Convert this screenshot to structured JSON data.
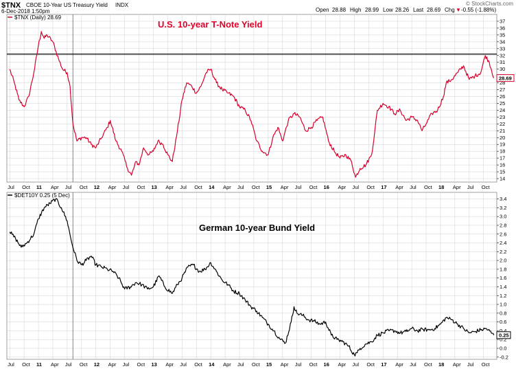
{
  "header": {
    "symbol": "$TNX",
    "description": "CBOE 10-Year US Treasury Yield",
    "exchange": "INDX",
    "date": "6-Dec-2018 1:50pm",
    "watermark": "© StockCharts.com",
    "open_label": "Open",
    "open": "28.88",
    "high_label": "High",
    "high": "28.99",
    "low_label": "Low",
    "low": "28.26",
    "last_label": "Last",
    "last": "28.69",
    "chg_label": "Chg",
    "chg": "-0.55 (-1.88%)",
    "chg_arrow": "▼"
  },
  "colors": {
    "top_line": "#d6002a",
    "bottom_line": "#000000",
    "annotation": "#e0002a",
    "grid": "#d0d0d0"
  },
  "chart_data": [
    {
      "type": "line",
      "legend": "$TNX (Daily) 28.69",
      "annotation": "U.S. 10-year T-Note Yield",
      "last_value_label": "28.69",
      "ylim": [
        13.5,
        38
      ],
      "yticks": [
        14,
        15,
        16,
        17,
        18,
        19,
        20,
        21,
        22,
        23,
        24,
        25,
        26,
        27,
        28,
        29,
        30,
        31,
        32,
        33,
        34,
        35,
        36,
        37
      ],
      "y_tick_labels": [
        "14",
        "15",
        "16",
        "17",
        "18",
        "19",
        "20",
        "21",
        "22",
        "23",
        "24",
        "25",
        "26",
        "27",
        "28",
        "29",
        "30",
        "31",
        "32",
        "33",
        "34",
        "35",
        "36",
        "37"
      ],
      "hline": 32.2,
      "grid": true,
      "series": [
        {
          "name": "$TNX",
          "x": [
            2010.5,
            2010.58,
            2010.66,
            2010.75,
            2010.83,
            2010.92,
            2011.0,
            2011.05,
            2011.1,
            2011.15,
            2011.25,
            2011.35,
            2011.42,
            2011.5,
            2011.55,
            2011.6,
            2011.67,
            2011.75,
            2011.83,
            2011.92,
            2012.0,
            2012.1,
            2012.2,
            2012.25,
            2012.35,
            2012.45,
            2012.55,
            2012.62,
            2012.7,
            2012.75,
            2012.83,
            2012.92,
            2013.0,
            2013.08,
            2013.17,
            2013.25,
            2013.33,
            2013.42,
            2013.5,
            2013.58,
            2013.67,
            2013.75,
            2013.83,
            2013.92,
            2014.0,
            2014.1,
            2014.2,
            2014.3,
            2014.4,
            2014.5,
            2014.6,
            2014.7,
            2014.8,
            2014.9,
            2015.0,
            2015.08,
            2015.17,
            2015.25,
            2015.35,
            2015.45,
            2015.55,
            2015.65,
            2015.75,
            2015.85,
            2015.95,
            2016.05,
            2016.15,
            2016.25,
            2016.35,
            2016.45,
            2016.52,
            2016.6,
            2016.7,
            2016.8,
            2016.85,
            2016.9,
            2017.0,
            2017.1,
            2017.2,
            2017.3,
            2017.4,
            2017.5,
            2017.6,
            2017.68,
            2017.75,
            2017.85,
            2017.95,
            2018.05,
            2018.1,
            2018.2,
            2018.3,
            2018.4,
            2018.5,
            2018.6,
            2018.7,
            2018.78,
            2018.85,
            2018.93
          ],
          "y": [
            30.0,
            28.0,
            25.5,
            24.5,
            26.0,
            29.5,
            33.5,
            35.5,
            34.5,
            35.0,
            34.0,
            31.5,
            30.0,
            29.5,
            27.5,
            22.0,
            19.5,
            20.0,
            20.0,
            19.0,
            18.5,
            20.0,
            21.5,
            22.5,
            19.5,
            18.0,
            15.5,
            14.5,
            16.5,
            16.0,
            18.5,
            17.5,
            18.0,
            19.5,
            19.0,
            17.5,
            16.5,
            21.0,
            25.5,
            28.0,
            27.5,
            26.5,
            27.5,
            29.5,
            30.0,
            28.0,
            27.0,
            26.5,
            26.0,
            24.5,
            24.0,
            22.5,
            19.5,
            18.0,
            17.5,
            20.0,
            21.5,
            19.5,
            22.5,
            23.5,
            23.0,
            21.0,
            21.5,
            22.5,
            23.0,
            19.5,
            18.0,
            17.0,
            17.5,
            16.5,
            14.2,
            15.5,
            16.0,
            17.5,
            20.5,
            24.0,
            25.0,
            24.5,
            23.5,
            24.0,
            22.5,
            23.0,
            22.5,
            21.0,
            22.0,
            23.5,
            24.0,
            26.0,
            28.0,
            28.5,
            29.5,
            30.5,
            28.5,
            29.0,
            29.5,
            32.0,
            31.0,
            28.7
          ]
        }
      ]
    },
    {
      "type": "line",
      "legend": "$DET10Y 0.25 (5 Dec)",
      "annotation": "German 10-year Bund Yield",
      "last_value_label": "0.25",
      "ylim": [
        -0.25,
        3.55
      ],
      "yticks": [
        -0.2,
        0.0,
        0.2,
        0.4,
        0.6,
        0.8,
        1.0,
        1.2,
        1.4,
        1.6,
        1.8,
        2.0,
        2.2,
        2.4,
        2.6,
        2.8,
        3.0,
        3.2,
        3.4
      ],
      "y_tick_labels": [
        "-0.2",
        "0.0",
        "0.2",
        "0.4",
        "0.6",
        "0.8",
        "1.0",
        "1.2",
        "1.4",
        "1.6",
        "1.8",
        "2.0",
        "2.2",
        "2.4",
        "2.6",
        "2.8",
        "3.0",
        "3.2",
        "3.4"
      ],
      "grid": true,
      "series": [
        {
          "name": "$DET10Y",
          "x": [
            2010.5,
            2010.6,
            2010.7,
            2010.8,
            2010.92,
            2011.0,
            2011.1,
            2011.2,
            2011.3,
            2011.4,
            2011.5,
            2011.58,
            2011.67,
            2011.75,
            2011.83,
            2011.92,
            2012.0,
            2012.1,
            2012.2,
            2012.3,
            2012.4,
            2012.5,
            2012.6,
            2012.7,
            2012.8,
            2012.9,
            2013.0,
            2013.1,
            2013.2,
            2013.33,
            2013.42,
            2013.5,
            2013.6,
            2013.7,
            2013.8,
            2013.9,
            2014.0,
            2014.1,
            2014.2,
            2014.3,
            2014.4,
            2014.5,
            2014.6,
            2014.7,
            2014.8,
            2014.9,
            2015.0,
            2015.1,
            2015.2,
            2015.3,
            2015.4,
            2015.45,
            2015.5,
            2015.6,
            2015.7,
            2015.8,
            2015.9,
            2016.0,
            2016.1,
            2016.2,
            2016.3,
            2016.4,
            2016.5,
            2016.55,
            2016.6,
            2016.7,
            2016.8,
            2016.9,
            2017.0,
            2017.1,
            2017.2,
            2017.3,
            2017.4,
            2017.5,
            2017.6,
            2017.7,
            2017.8,
            2017.9,
            2018.0,
            2018.1,
            2018.2,
            2018.3,
            2018.4,
            2018.5,
            2018.6,
            2018.7,
            2018.8,
            2018.93
          ],
          "y": [
            2.65,
            2.5,
            2.3,
            2.4,
            2.6,
            2.95,
            3.2,
            3.3,
            3.4,
            3.2,
            2.9,
            2.4,
            2.0,
            1.9,
            2.0,
            2.1,
            1.9,
            1.85,
            1.8,
            1.75,
            1.6,
            1.35,
            1.4,
            1.5,
            1.45,
            1.35,
            1.4,
            1.65,
            1.4,
            1.25,
            1.45,
            1.6,
            1.85,
            1.9,
            1.75,
            1.8,
            1.95,
            1.75,
            1.55,
            1.45,
            1.3,
            1.25,
            1.1,
            0.95,
            0.85,
            0.7,
            0.55,
            0.4,
            0.22,
            0.12,
            0.6,
            0.95,
            0.8,
            0.75,
            0.65,
            0.62,
            0.55,
            0.6,
            0.3,
            0.2,
            0.15,
            0.05,
            -0.15,
            -0.1,
            0.0,
            0.1,
            0.15,
            0.3,
            0.35,
            0.4,
            0.4,
            0.35,
            0.38,
            0.45,
            0.4,
            0.43,
            0.42,
            0.45,
            0.55,
            0.7,
            0.65,
            0.55,
            0.45,
            0.35,
            0.38,
            0.42,
            0.45,
            0.3
          ]
        }
      ]
    }
  ],
  "x_axis": {
    "range": [
      2010.45,
      2018.98
    ],
    "ticks": [
      {
        "x": 2010.5,
        "label": "Jul",
        "bold": false
      },
      {
        "x": 2010.75,
        "label": "Oct",
        "bold": false
      },
      {
        "x": 2011.0,
        "label": "11",
        "bold": true
      },
      {
        "x": 2011.25,
        "label": "Apr",
        "bold": false
      },
      {
        "x": 2011.5,
        "label": "Jul",
        "bold": false
      },
      {
        "x": 2011.75,
        "label": "Oct",
        "bold": false
      },
      {
        "x": 2012.0,
        "label": "12",
        "bold": true
      },
      {
        "x": 2012.25,
        "label": "Apr",
        "bold": false
      },
      {
        "x": 2012.5,
        "label": "Jul",
        "bold": false
      },
      {
        "x": 2012.75,
        "label": "Oct",
        "bold": false
      },
      {
        "x": 2013.0,
        "label": "13",
        "bold": true
      },
      {
        "x": 2013.25,
        "label": "Apr",
        "bold": false
      },
      {
        "x": 2013.5,
        "label": "Jul",
        "bold": false
      },
      {
        "x": 2013.75,
        "label": "Oct",
        "bold": false
      },
      {
        "x": 2014.0,
        "label": "14",
        "bold": true
      },
      {
        "x": 2014.25,
        "label": "Apr",
        "bold": false
      },
      {
        "x": 2014.5,
        "label": "Jul",
        "bold": false
      },
      {
        "x": 2014.75,
        "label": "Oct",
        "bold": false
      },
      {
        "x": 2015.0,
        "label": "15",
        "bold": true
      },
      {
        "x": 2015.25,
        "label": "Apr",
        "bold": false
      },
      {
        "x": 2015.5,
        "label": "Jul",
        "bold": false
      },
      {
        "x": 2015.75,
        "label": "Oct",
        "bold": false
      },
      {
        "x": 2016.0,
        "label": "16",
        "bold": true
      },
      {
        "x": 2016.25,
        "label": "Apr",
        "bold": false
      },
      {
        "x": 2016.5,
        "label": "Jul",
        "bold": false
      },
      {
        "x": 2016.75,
        "label": "Oct",
        "bold": false
      },
      {
        "x": 2017.0,
        "label": "17",
        "bold": true
      },
      {
        "x": 2017.25,
        "label": "Apr",
        "bold": false
      },
      {
        "x": 2017.5,
        "label": "Jul",
        "bold": false
      },
      {
        "x": 2017.75,
        "label": "Oct",
        "bold": false
      },
      {
        "x": 2018.0,
        "label": "18",
        "bold": true
      },
      {
        "x": 2018.25,
        "label": "Apr",
        "bold": false
      },
      {
        "x": 2018.5,
        "label": "Jul",
        "bold": false
      },
      {
        "x": 2018.75,
        "label": "Oct",
        "bold": false
      }
    ],
    "vline": 2011.6
  }
}
